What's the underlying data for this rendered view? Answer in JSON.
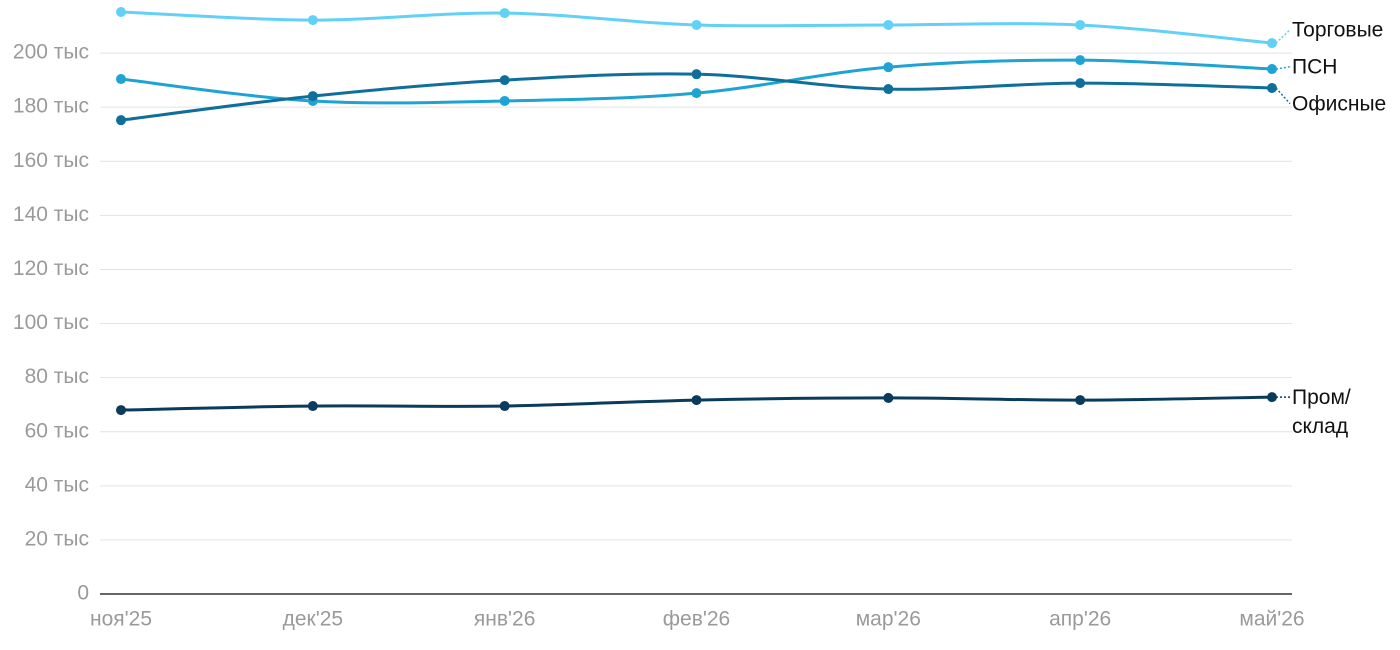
{
  "chart_data": {
    "type": "line",
    "categories": [
      "ноя'25",
      "дек'25",
      "янв'26",
      "фев'26",
      "мар'26",
      "апр'26",
      "май'26"
    ],
    "series": [
      {
        "name": "Торговые",
        "color": "#62d0f7",
        "values": [
          215200,
          212200,
          214800,
          210400,
          210400,
          210400,
          203700
        ]
      },
      {
        "name": "ПСН",
        "color": "#1ea3d3",
        "values": [
          190400,
          182300,
          182300,
          185200,
          194800,
          197400,
          194100
        ]
      },
      {
        "name": "Офисные",
        "color": "#0f6f9a",
        "values": [
          175200,
          184100,
          190000,
          192200,
          186700,
          188900,
          187100
        ]
      },
      {
        "name": "Пром/ склад",
        "color": "#0b3b5c",
        "values": [
          68000,
          69500,
          69500,
          71700,
          72500,
          71700,
          72800
        ]
      }
    ],
    "ylim": [
      0,
      220000
    ],
    "yticks": [
      0,
      {
        "value": 20000,
        "label": "20 тыс"
      },
      {
        "value": 40000,
        "label": "40 тыс"
      },
      {
        "value": 60000,
        "label": "60 тыс"
      },
      {
        "value": 80000,
        "label": "80 тыс"
      },
      {
        "value": 100000,
        "label": "100 тыс"
      },
      {
        "value": 120000,
        "label": "120 тыс"
      },
      {
        "value": 140000,
        "label": "140 тыс"
      },
      {
        "value": 160000,
        "label": "160 тыс"
      },
      {
        "value": 180000,
        "label": "180 тыс"
      },
      {
        "value": 200000,
        "label": "200 тыс"
      }
    ],
    "grid": true
  }
}
